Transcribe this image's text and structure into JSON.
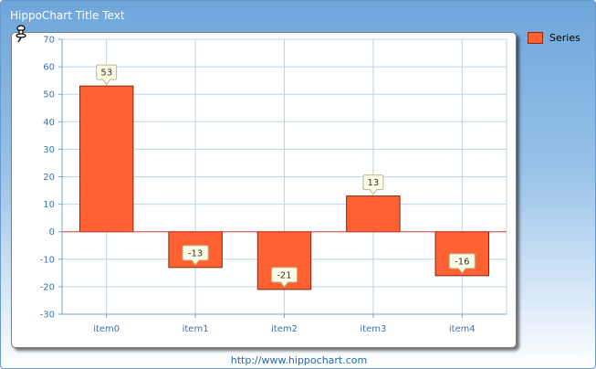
{
  "title": "HippoChart Title Text",
  "footer": "http://www.hippochart.com",
  "legend": {
    "label": "Series",
    "color": "#ff6133"
  },
  "chart_data": {
    "type": "bar",
    "title": "HippoChart Title Text",
    "xlabel": "",
    "ylabel": "",
    "categories": [
      "item0",
      "item1",
      "item2",
      "item3",
      "item4"
    ],
    "series": [
      {
        "name": "Series",
        "values": [
          53,
          -13,
          -21,
          13,
          -16
        ],
        "color": "#ff6133"
      }
    ],
    "ylim": [
      -30,
      70
    ],
    "yticks": [
      70,
      60,
      50,
      40,
      30,
      20,
      10,
      0,
      -10,
      -20,
      -30
    ],
    "grid": true,
    "legend_position": "top-right",
    "data_labels": [
      "53",
      "-13",
      "-21",
      "13",
      "-16"
    ]
  }
}
